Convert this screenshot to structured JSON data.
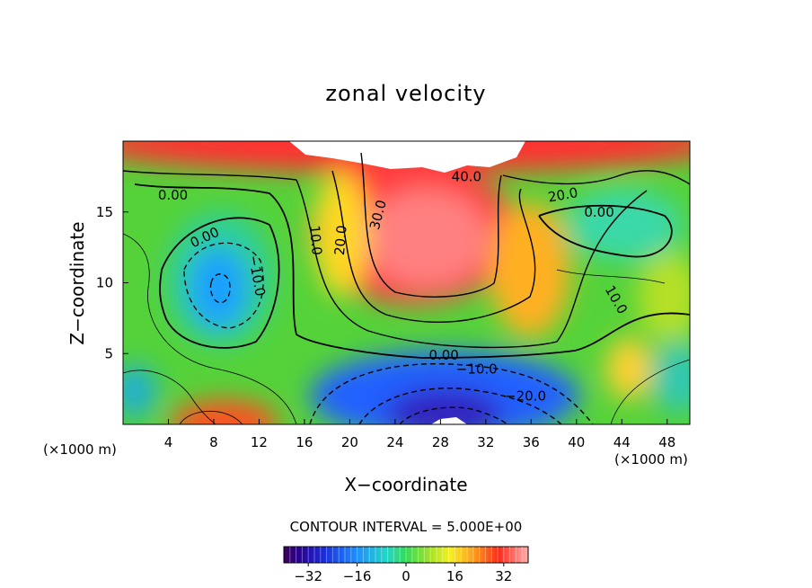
{
  "chart_data": {
    "type": "heatmap",
    "title": "zonal velocity",
    "xlabel": "X−coordinate",
    "ylabel": "Z−coordinate",
    "x_unit_left": "(×1000 m)",
    "x_unit_right": "(×1000 m)",
    "xlim": [
      0,
      50
    ],
    "ylim": [
      0,
      20
    ],
    "x_ticks": [
      4,
      8,
      12,
      16,
      20,
      24,
      28,
      32,
      36,
      40,
      44,
      48
    ],
    "y_ticks": [
      5,
      10,
      15
    ],
    "contour_interval_text": "CONTOUR INTERVAL = 5.000E+00",
    "colorbar": {
      "range": [
        -40,
        40
      ],
      "ticks": [
        -32,
        -16,
        0,
        16,
        32
      ]
    },
    "contour_labels": [
      {
        "text": "40.0",
        "x": 30.3,
        "z": 17.5,
        "angle": 0
      },
      {
        "text": "30.0",
        "x": 22.5,
        "z": 14.8,
        "angle": -75
      },
      {
        "text": "20.0",
        "x": 19.2,
        "z": 13.0,
        "angle": -85
      },
      {
        "text": "10.0",
        "x": 17.0,
        "z": 13.0,
        "angle": 85
      },
      {
        "text": "0.00",
        "x": 4.4,
        "z": 16.2,
        "angle": 0
      },
      {
        "text": "0.00",
        "x": 7.2,
        "z": 13.2,
        "angle": -25
      },
      {
        "text": "−10.0",
        "x": 11.8,
        "z": 10.5,
        "angle": 80
      },
      {
        "text": "20.0",
        "x": 38.8,
        "z": 16.2,
        "angle": -10
      },
      {
        "text": "0.00",
        "x": 42.0,
        "z": 15.0,
        "angle": 0
      },
      {
        "text": "10.0",
        "x": 43.5,
        "z": 8.8,
        "angle": 60
      },
      {
        "text": "0.00",
        "x": 28.3,
        "z": 4.9,
        "angle": 0
      },
      {
        "text": "−10.0",
        "x": 31.2,
        "z": 3.9,
        "angle": 0
      },
      {
        "text": "−20.0",
        "x": 35.5,
        "z": 2.0,
        "angle": 0
      }
    ]
  }
}
